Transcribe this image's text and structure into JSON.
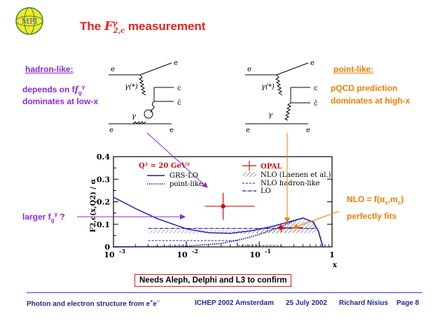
{
  "header": {
    "logo_text": "MPI",
    "title_prefix": "The",
    "title_math": "F",
    "title_sup": "γ",
    "title_sub": "2,c",
    "title_suffix": "measurement"
  },
  "left_panel": {
    "heading": "hadron-like:",
    "line1": "depends on f",
    "line1_sub": "g",
    "line1_sup": "γ",
    "line2": "dominates at low-x"
  },
  "right_panel": {
    "heading": "point-like:",
    "line1": "pQCD prediction",
    "line2": "dominates at high-x"
  },
  "diagram_left": {
    "e_top_left": "e",
    "e_top_right": "e",
    "photon_star": "γ(*)",
    "c": "c",
    "cbar": "c̄",
    "gamma": "γ",
    "e_bottom_left": "e",
    "e_bottom_right": "e"
  },
  "diagram_right": {
    "e_top_left": "e",
    "e_top_right": "e",
    "photon_star": "γ(*)",
    "c": "c",
    "cbar": "c̄",
    "gamma": "γ",
    "e_bottom_left": "e",
    "e_bottom_right": "e"
  },
  "annotations": {
    "larger_fg": "larger f",
    "larger_fg_sub": "g",
    "larger_fg_sup": "γ",
    "larger_q": "?",
    "nlo": "NLO = f(α",
    "nlo_sub": "s",
    "nlo_mid": ",m",
    "nlo_sub2": "c",
    "nlo_end": ")",
    "perfect": "perfectly fits",
    "confirm": "Needs Aleph, Delphi and L3 to confirm"
  },
  "chart_data": {
    "type": "scatter",
    "xscale": "log",
    "xlim": [
      0.001,
      1
    ],
    "ylim": [
      0,
      0.4
    ],
    "xlabel": "x",
    "ylabel": "F2,c(x,Q2) / α",
    "xticks": [
      {
        "base": "10",
        "exp": "-3"
      },
      {
        "base": "10",
        "exp": "-2"
      },
      {
        "base": "10",
        "exp": "-1"
      },
      {
        "base": "1",
        "exp": ""
      }
    ],
    "yticks": [
      "0",
      "0.1",
      "0.2",
      "0.3",
      "0.4"
    ],
    "q2_label": "Q² = 20 GeV²",
    "legend_left": [
      "GRS-LO",
      "point-like"
    ],
    "legend_right": [
      "OPAL",
      "NLO (Laenen et al.)",
      "NLO hadron-like",
      "LO"
    ],
    "series": [
      {
        "name": "OPAL",
        "points": [
          {
            "x": 0.032,
            "y": 0.18,
            "xerr": [
              0.014,
              0.055
            ],
            "yerr": 0.06
          },
          {
            "x": 0.2,
            "y": 0.085,
            "xerr": [
              0.02,
              0.2
            ],
            "yerr": 0.02
          }
        ]
      },
      {
        "name": "GRS-LO",
        "curve": [
          [
            0.001,
            0.22
          ],
          [
            0.002,
            0.17
          ],
          [
            0.004,
            0.125
          ],
          [
            0.01,
            0.08
          ],
          [
            0.02,
            0.063
          ],
          [
            0.04,
            0.06
          ],
          [
            0.08,
            0.072
          ],
          [
            0.15,
            0.09
          ],
          [
            0.25,
            0.11
          ],
          [
            0.4,
            0.128
          ],
          [
            0.55,
            0.11
          ],
          [
            0.65,
            0.07
          ],
          [
            0.72,
            0.02
          ],
          [
            0.75,
            0
          ]
        ]
      },
      {
        "name": "point-like",
        "curve": [
          [
            0.001,
            0
          ],
          [
            0.01,
            0.003
          ],
          [
            0.03,
            0.015
          ],
          [
            0.06,
            0.035
          ],
          [
            0.1,
            0.055
          ],
          [
            0.2,
            0.09
          ],
          [
            0.3,
            0.115
          ],
          [
            0.4,
            0.128
          ],
          [
            0.55,
            0.11
          ],
          [
            0.65,
            0.07
          ],
          [
            0.72,
            0.02
          ],
          [
            0.75,
            0
          ]
        ]
      },
      {
        "name": "NLO hadron-like",
        "curve": [
          [
            0.003,
            0.028
          ],
          [
            0.05,
            0.028
          ],
          [
            0.05,
            0.006
          ],
          [
            0.2,
            0.006
          ]
        ]
      },
      {
        "name": "LO",
        "curve": [
          [
            0.003,
            0.082
          ],
          [
            0.6,
            0.082
          ]
        ]
      }
    ]
  },
  "footer": {
    "left": "Photon and electron structure from e",
    "left_sup1": "+",
    "left_mid": "e",
    "left_sup2": "−",
    "conf": "ICHEP 2002 Amsterdam",
    "date": "25 July 2002",
    "author": "Richard Nisius",
    "page": "Page 8"
  },
  "colors": {
    "title": "#e8221f",
    "purple": "#8a2bd6",
    "orange": "#f07f00",
    "curve_blue": "#1a1aa8",
    "point_red": "#cc1111",
    "footer": "#1f2a8c"
  }
}
